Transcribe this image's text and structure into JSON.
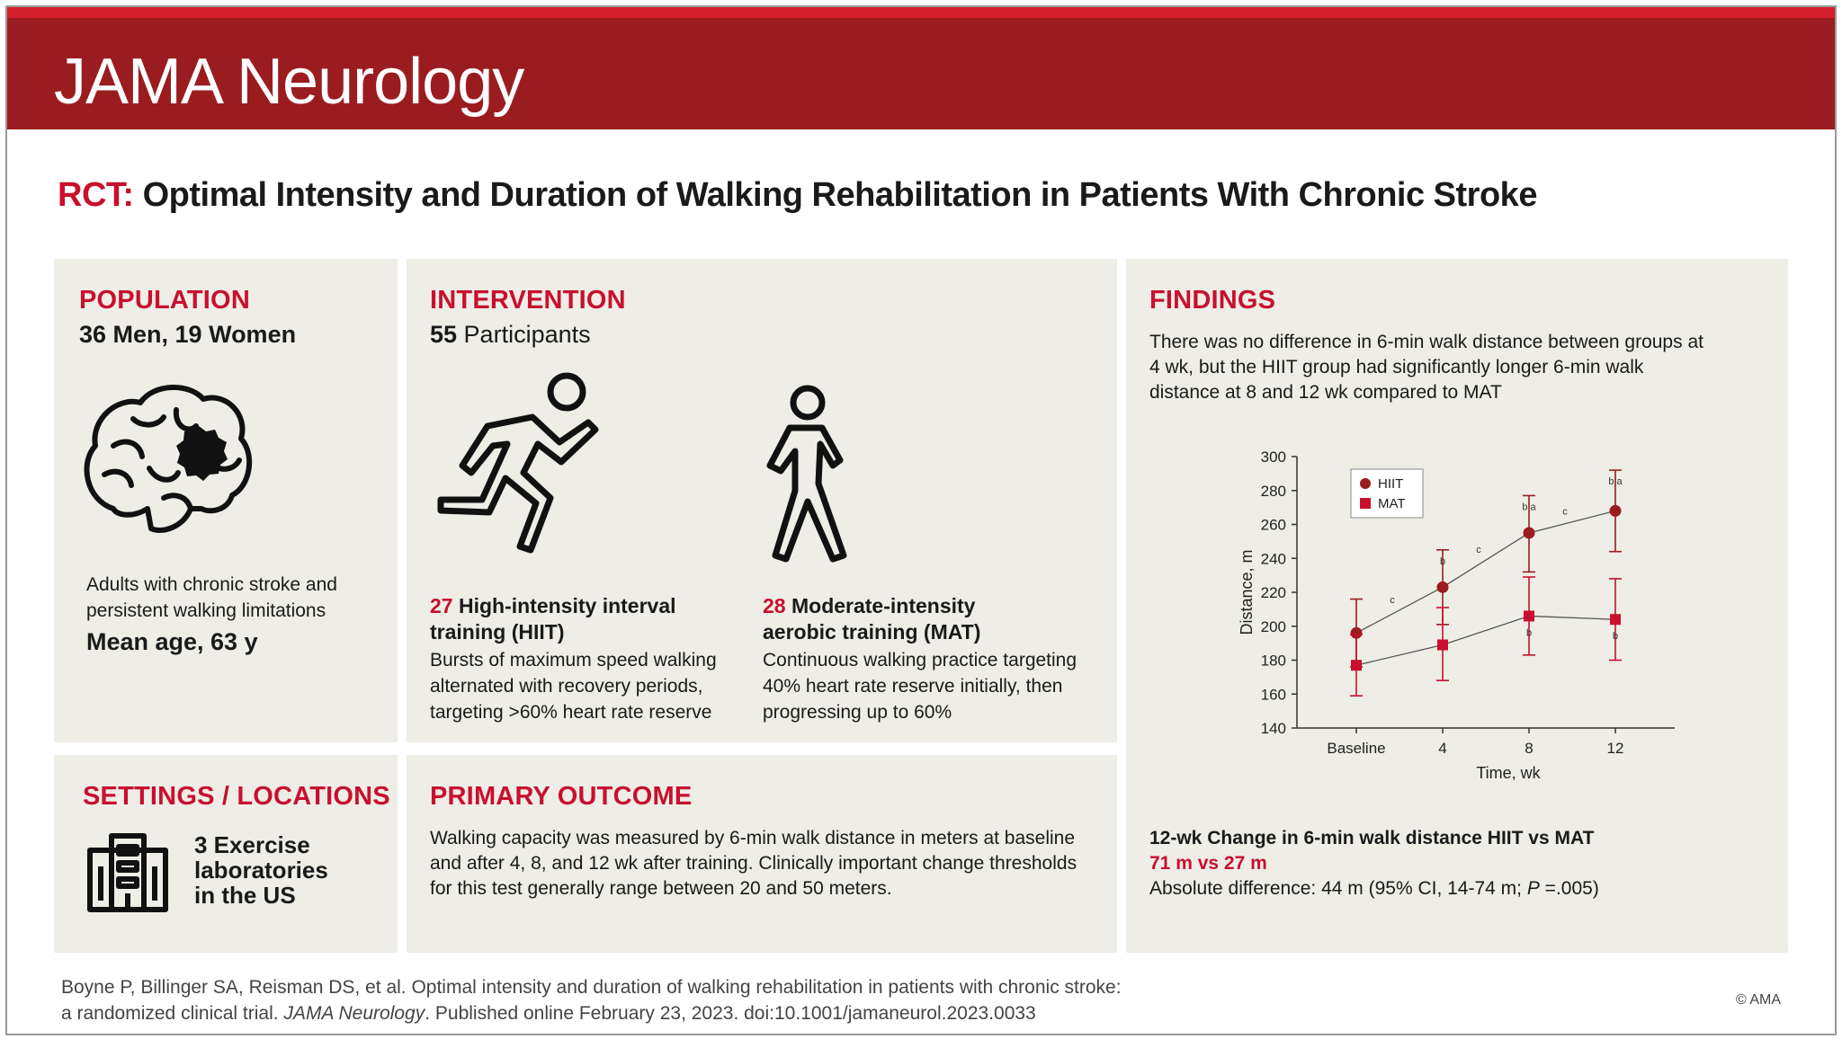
{
  "header": {
    "journal": "JAMA Neurology"
  },
  "title": {
    "prefix": "RCT:",
    "text": " Optimal Intensity and Duration of Walking Rehabilitation in Patients With Chronic Stroke"
  },
  "population": {
    "heading": "POPULATION",
    "count": "36 Men, 19 Women",
    "desc_line1": "Adults with chronic stroke and",
    "desc_line2": "persistent walking limitations",
    "mean_age": "Mean age, 63 y",
    "icon": "brain-icon"
  },
  "intervention": {
    "heading": "INTERVENTION",
    "participants_num": "55",
    "participants_label": " Participants",
    "hiit": {
      "icon": "running-person-icon",
      "num": "27",
      "title_line1": " High-intensity interval",
      "title_line2": "training (HIIT)",
      "desc_line1": "Bursts of maximum speed walking",
      "desc_line2": "alternated with recovery periods,",
      "desc_line3": "targeting >60% heart rate reserve"
    },
    "mat": {
      "icon": "walking-person-icon",
      "num": "28",
      "title_line1": " Moderate-intensity",
      "title_line2": "aerobic training (MAT)",
      "desc_line1": "Continuous walking practice targeting",
      "desc_line2": "40% heart rate reserve initially, then",
      "desc_line3": "progressing up to 60%"
    }
  },
  "settings": {
    "heading": "SETTINGS / LOCATIONS",
    "icon": "building-icon",
    "line1": "3 Exercise",
    "line2": "laboratories",
    "line3": "in the US"
  },
  "outcome": {
    "heading": "PRIMARY OUTCOME",
    "line1": "Walking capacity was measured by 6-min walk distance in meters at baseline",
    "line2": "and after 4, 8, and 12 wk after training. Clinically important change thresholds",
    "line3": "for this test generally range between 20 and 50 meters."
  },
  "findings": {
    "heading": "FINDINGS",
    "line1": "There was no difference in 6-min walk distance between groups at",
    "line2": "4 wk, but the HIIT group had significantly longer 6-min walk",
    "line3": "distance at 8 and 12 wk compared to MAT",
    "change_title": "12-wk Change in 6-min walk distance HIIT vs MAT",
    "change_values": "71 m vs 27 m",
    "abs_diff_prefix": "Absolute difference: 44 m (95% CI, 14-74 m; ",
    "abs_diff_p": "P",
    "abs_diff_suffix": " =.005)"
  },
  "chart_data": {
    "type": "line",
    "categories": [
      "Baseline",
      "4",
      "8",
      "12"
    ],
    "xlabel": "Time, wk",
    "ylabel": "Distance, m",
    "ylim": [
      140,
      300
    ],
    "yticks": [
      140,
      160,
      180,
      200,
      220,
      240,
      260,
      280,
      300
    ],
    "legend_position": "top-left",
    "grid": false,
    "series": [
      {
        "name": "HIIT",
        "marker": "circle",
        "color": "#9b1c20",
        "values": [
          196,
          223,
          255,
          268
        ],
        "ci_low": [
          176,
          201,
          232,
          244
        ],
        "ci_high": [
          216,
          245,
          277,
          292
        ],
        "point_labels": [
          "",
          "b",
          "b a",
          "b a"
        ]
      },
      {
        "name": "MAT",
        "marker": "square",
        "color": "#c8102e",
        "values": [
          177,
          189,
          206,
          204
        ],
        "ci_low": [
          159,
          168,
          183,
          180
        ],
        "ci_high": [
          195,
          211,
          229,
          228
        ],
        "point_labels": [
          "",
          "",
          "b",
          "b"
        ]
      }
    ],
    "segment_labels": [
      "c",
      "c",
      "c"
    ]
  },
  "footer": {
    "line1": "Boyne P, Billinger SA, Reisman DS, et al. Optimal intensity and duration of walking rehabilitation in patients with chronic stroke:",
    "line2_prefix": "a randomized clinical trial. ",
    "line2_journal": "JAMA Neurology",
    "line2_suffix": ". Published online February 23, 2023. doi:10.1001/jamaneurol.2023.0033",
    "copyright": "© AMA"
  }
}
